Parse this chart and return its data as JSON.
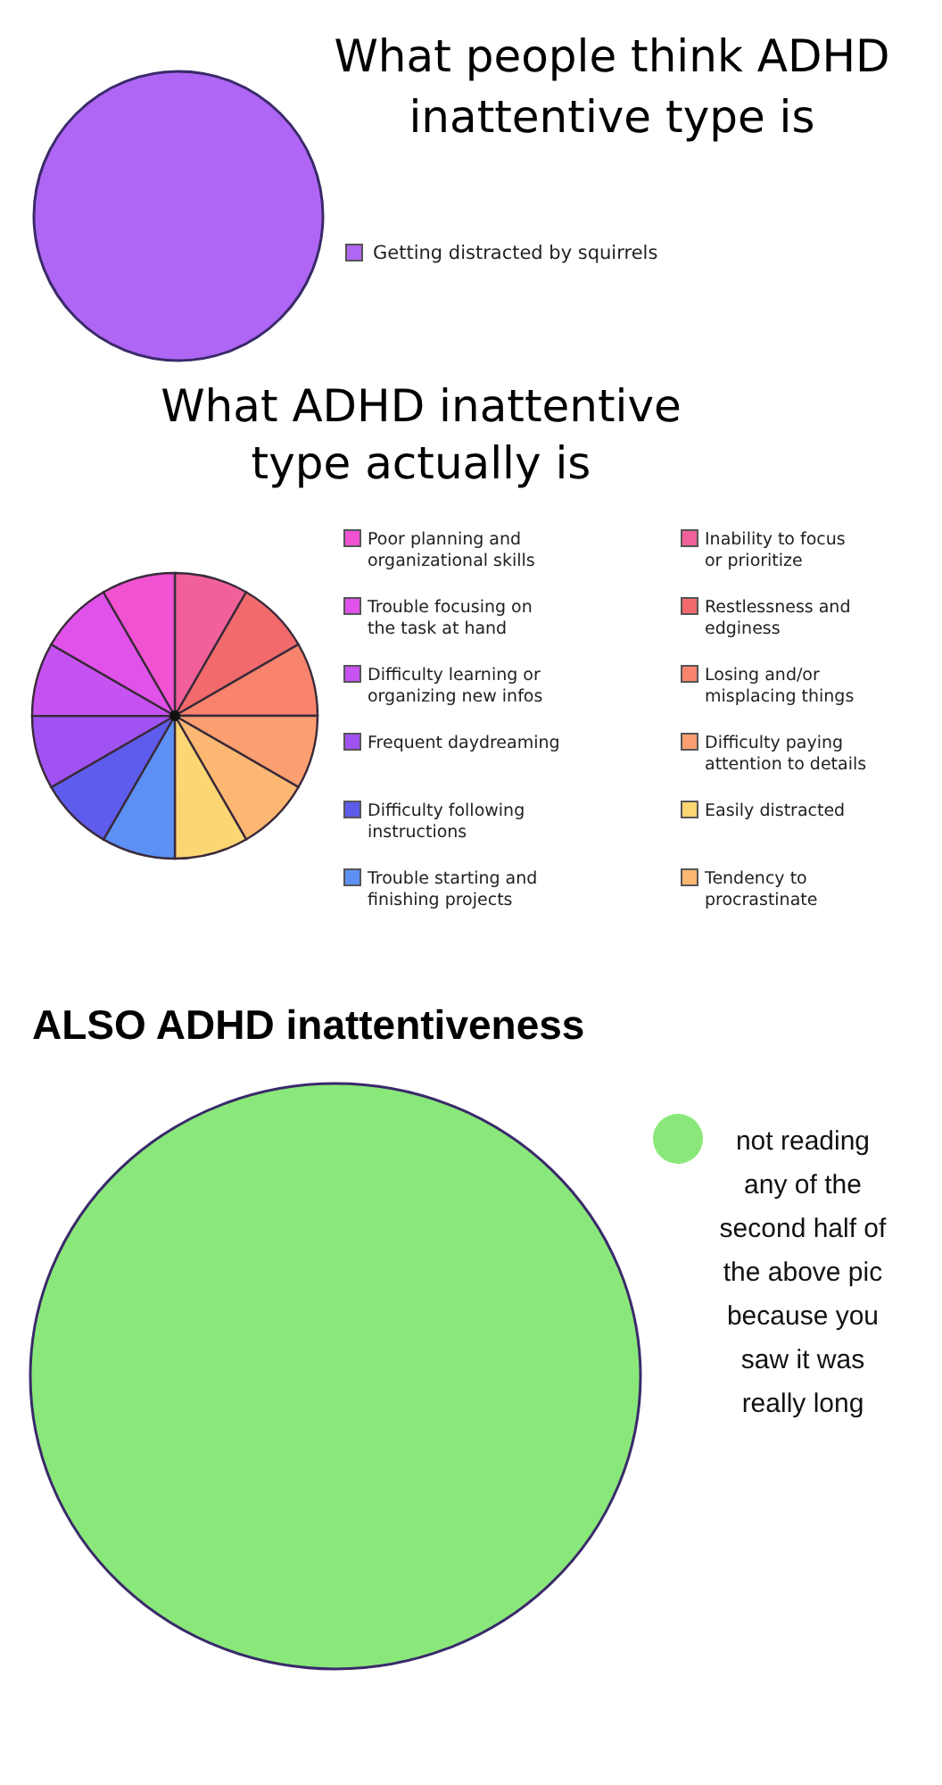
{
  "chart_data": [
    {
      "type": "pie",
      "title": "What people think ADHD inattentive type is",
      "categories": [
        "Getting distracted by squirrels"
      ],
      "values": [
        100
      ],
      "colors": [
        "#b066f4"
      ],
      "legend": "right"
    },
    {
      "type": "pie",
      "title": "What ADHD inattentive type actually is",
      "categories": [
        "Inability to focus or prioritize",
        "Restlessness and edginess",
        "Losing and/or misplacing things",
        "Difficulty paying attention to details",
        "Tendency to procrastinate",
        "Easily distracted",
        "Trouble starting and finishing projects",
        "Difficulty following instructions",
        "Frequent daydreaming",
        "Difficulty learning or organizing new infos",
        "Trouble focusing on the task at hand",
        "Poor planning and organizational skills"
      ],
      "values": [
        8.33,
        8.33,
        8.33,
        8.33,
        8.33,
        8.33,
        8.33,
        8.33,
        8.33,
        8.33,
        8.33,
        8.34
      ],
      "colors": [
        "#f2609a",
        "#f26a6c",
        "#f8846e",
        "#fb9e70",
        "#fcb872",
        "#fcd672",
        "#5c90f4",
        "#5e5cec",
        "#a052f2",
        "#c652f2",
        "#e052ea",
        "#f052d2"
      ],
      "legend": "right"
    },
    {
      "type": "pie",
      "title": "ALSO ADHD inattentiveness",
      "categories": [
        "not reading any of the second half of the above pic because you saw it was really long"
      ],
      "values": [
        100
      ],
      "colors": [
        "#8ae87a"
      ],
      "legend": "top right"
    }
  ]
}
